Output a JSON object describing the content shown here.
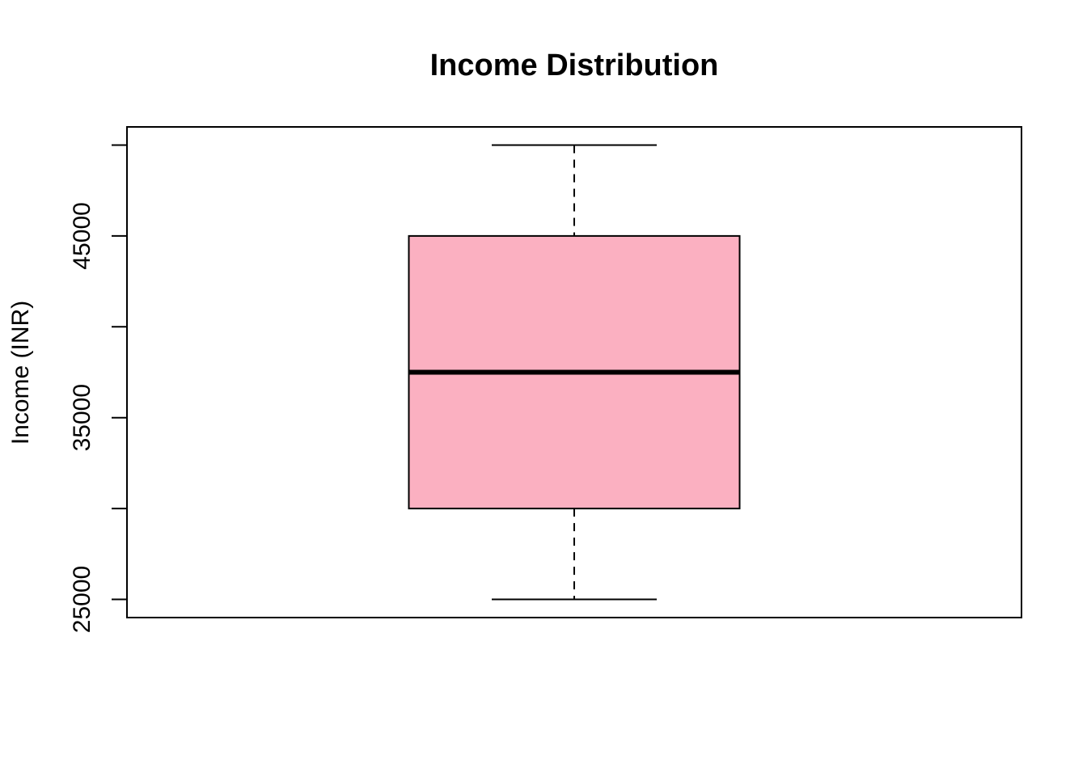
{
  "chart_data": {
    "type": "boxplot",
    "title": "Income Distribution",
    "xlabel": "",
    "ylabel": "Income (INR)",
    "ylim": [
      24000,
      51000
    ],
    "yticks": [
      25000,
      30000,
      35000,
      40000,
      45000,
      50000
    ],
    "ytick_labels": [
      "25000",
      "",
      "35000",
      "",
      "45000",
      ""
    ],
    "boxes": [
      {
        "min": 25000,
        "q1": 30000,
        "median": 37500,
        "q3": 45000,
        "max": 50000
      }
    ],
    "colors": {
      "box_fill": "#FBB0C1",
      "stroke": "#000000"
    },
    "grid": false,
    "legend": "none"
  }
}
